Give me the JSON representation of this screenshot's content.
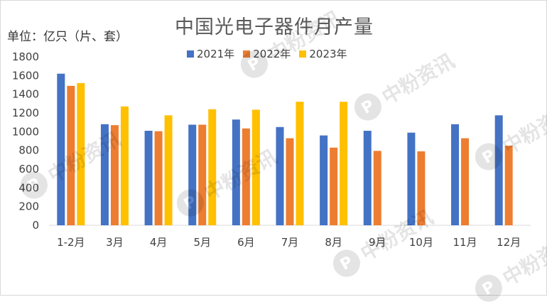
{
  "chart_data": {
    "type": "bar",
    "title": "中国光电子器件月产量",
    "ylabel": "单位：亿只（片、套）",
    "xlabel": "",
    "categories": [
      "1-2月",
      "3月",
      "4月",
      "5月",
      "6月",
      "7月",
      "8月",
      "9月",
      "10月",
      "11月",
      "12月"
    ],
    "series": [
      {
        "name": "2021年",
        "color": "#4472C4",
        "values": [
          1620,
          1080,
          1010,
          1075,
          1130,
          1050,
          960,
          1010,
          990,
          1080,
          1175
        ]
      },
      {
        "name": "2022年",
        "color": "#ED7D31",
        "values": [
          1490,
          1070,
          1005,
          1075,
          1035,
          930,
          830,
          795,
          790,
          930,
          850
        ]
      },
      {
        "name": "2023年",
        "color": "#FFC000",
        "values": [
          1520,
          1270,
          1175,
          1240,
          1235,
          1320,
          1320,
          null,
          null,
          null,
          null
        ]
      }
    ],
    "ylim": [
      0,
      1800
    ],
    "yticks": [
      0,
      200,
      400,
      600,
      800,
      1000,
      1200,
      1400,
      1600,
      1800
    ],
    "grid": false,
    "legend_position": "top"
  },
  "watermark": {
    "logo_letter": "P",
    "text": "中粉资讯"
  }
}
